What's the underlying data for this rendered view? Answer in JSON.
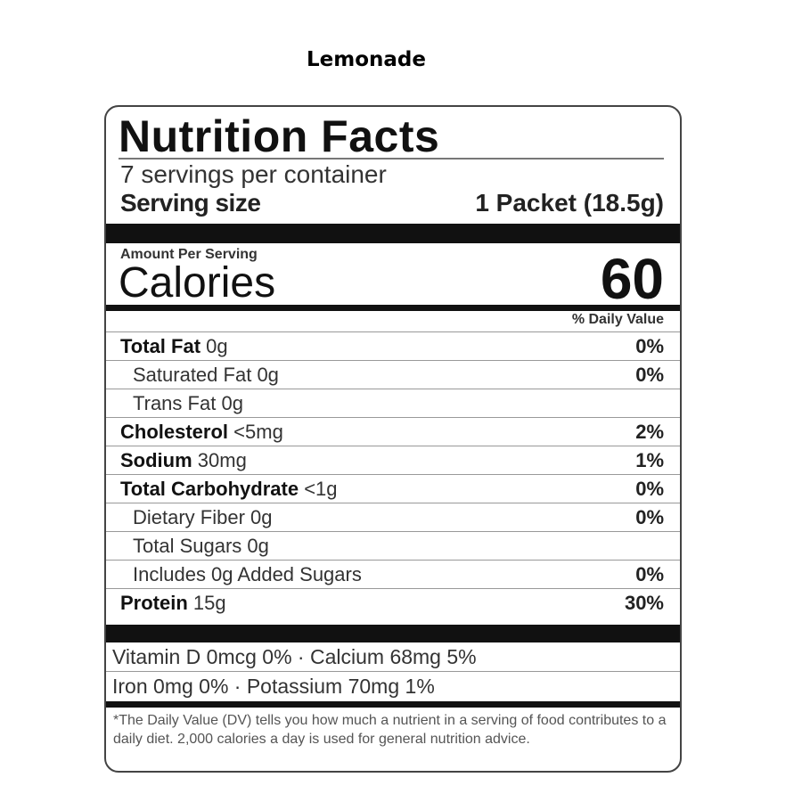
{
  "product_title": "Lemonade",
  "label": {
    "heading": "Nutrition Facts",
    "servings_per_container": "7 servings per container",
    "serving_size_label": "Serving size",
    "serving_size_value": "1 Packet (18.5g)",
    "amount_per_serving": "Amount Per Serving",
    "calories_label": "Calories",
    "calories_value": "60",
    "daily_value_header": "% Daily Value",
    "nutrients": [
      {
        "name": "Total Fat",
        "amount": "0g",
        "dv": "0%",
        "bold": true
      },
      {
        "name": "Saturated Fat",
        "amount": "0g",
        "dv": "0%",
        "bold": false
      },
      {
        "name": "Trans Fat",
        "amount": "0g",
        "dv": "",
        "bold": false
      },
      {
        "name": "Cholesterol",
        "amount": "<5mg",
        "dv": "2%",
        "bold": true
      },
      {
        "name": "Sodium",
        "amount": "30mg",
        "dv": "1%",
        "bold": true
      },
      {
        "name": "Total Carbohydrate",
        "amount": "<1g",
        "dv": "0%",
        "bold": true
      },
      {
        "name": "Dietary Fiber",
        "amount": "0g",
        "dv": "0%",
        "bold": false
      },
      {
        "name": "Total Sugars",
        "amount": "0g",
        "dv": "",
        "bold": false
      },
      {
        "name": "Includes 0g Added Sugars",
        "amount": "",
        "dv": "0%",
        "bold": false
      },
      {
        "name": "Protein",
        "amount": "15g",
        "dv": "30%",
        "bold": true
      }
    ],
    "vitamins": [
      "Vitamin D 0mcg 0%  ·  Calcium 68mg 5%",
      "Iron 0mg 0%  ·  Potassium 70mg 1%"
    ],
    "footnote": "*The Daily Value (DV) tells you how much a nutrient in a serving of food contributes to a daily diet. 2,000 calories a day is used for general nutrition advice."
  }
}
